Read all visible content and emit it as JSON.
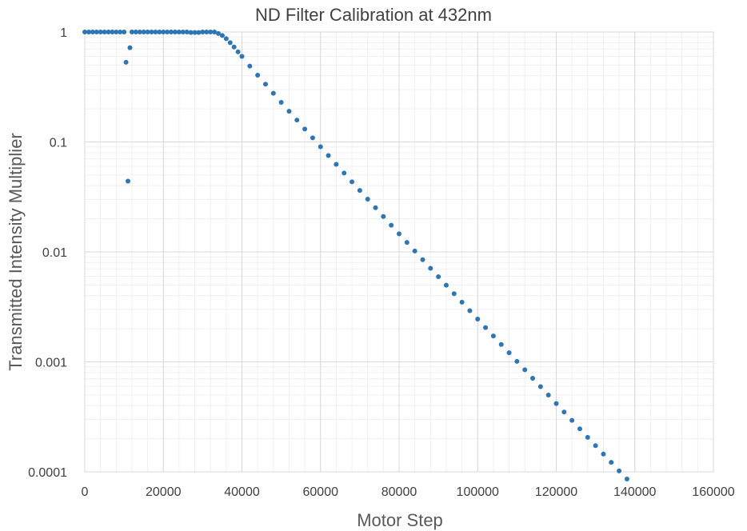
{
  "chart_data": {
    "type": "scatter",
    "title": "ND Filter Calibration at 432nm",
    "xlabel": "Motor Step",
    "ylabel": "Transmitted Intensity Multiplier",
    "xlim": [
      0,
      160000
    ],
    "ylim": [
      0.0001,
      1
    ],
    "y_scale": "log",
    "x_ticks": [
      0,
      20000,
      40000,
      60000,
      80000,
      100000,
      120000,
      140000,
      160000
    ],
    "x_tick_labels": [
      "0",
      "20000",
      "40000",
      "60000",
      "80000",
      "100000",
      "120000",
      "140000",
      "160000"
    ],
    "y_ticks": [
      1,
      0.1,
      0.01,
      0.001,
      0.0001
    ],
    "y_tick_labels": [
      "1",
      "0.1",
      "0.01",
      "0.001",
      "0.0001"
    ],
    "grid": "major and minor",
    "marker_color": "#2e75b6",
    "series": [
      {
        "points": [
          [
            0,
            1
          ],
          [
            1000,
            1
          ],
          [
            2000,
            1
          ],
          [
            3000,
            1
          ],
          [
            4000,
            1
          ],
          [
            5000,
            1
          ],
          [
            6000,
            1
          ],
          [
            7000,
            1
          ],
          [
            8000,
            1
          ],
          [
            9000,
            1
          ],
          [
            10000,
            1
          ],
          [
            10500,
            0.53
          ],
          [
            11000,
            0.044
          ],
          [
            11500,
            0.72
          ],
          [
            12000,
            1
          ],
          [
            13000,
            1
          ],
          [
            14000,
            1
          ],
          [
            15000,
            1
          ],
          [
            16000,
            1
          ],
          [
            17000,
            1
          ],
          [
            18000,
            1
          ],
          [
            19000,
            1
          ],
          [
            20000,
            1
          ],
          [
            21000,
            1
          ],
          [
            22000,
            1
          ],
          [
            23000,
            1
          ],
          [
            24000,
            1
          ],
          [
            25000,
            1
          ],
          [
            26000,
            1
          ],
          [
            27000,
            0.99
          ],
          [
            28000,
            0.99
          ],
          [
            29000,
            0.99
          ],
          [
            30000,
            1
          ],
          [
            31000,
            1
          ],
          [
            32000,
            1
          ],
          [
            33000,
            1
          ],
          [
            34000,
            0.97
          ],
          [
            35000,
            0.93
          ],
          [
            36000,
            0.87
          ],
          [
            37000,
            0.8
          ],
          [
            38000,
            0.73
          ],
          [
            39000,
            0.66
          ],
          [
            40000,
            0.6
          ],
          [
            42000,
            0.49
          ],
          [
            44000,
            0.405
          ],
          [
            46000,
            0.335
          ],
          [
            48000,
            0.277
          ],
          [
            50000,
            0.229
          ],
          [
            52000,
            0.19
          ],
          [
            54000,
            0.158
          ],
          [
            56000,
            0.131
          ],
          [
            58000,
            0.109
          ],
          [
            60000,
            0.0905
          ],
          [
            62000,
            0.0752
          ],
          [
            64000,
            0.0626
          ],
          [
            66000,
            0.0521
          ],
          [
            68000,
            0.0434
          ],
          [
            70000,
            0.0362
          ],
          [
            72000,
            0.0302
          ],
          [
            74000,
            0.0252
          ],
          [
            76000,
            0.021
          ],
          [
            78000,
            0.0175
          ],
          [
            80000,
            0.0146
          ],
          [
            82000,
            0.0122
          ],
          [
            84000,
            0.0102
          ],
          [
            86000,
            0.0085
          ],
          [
            88000,
            0.0071
          ],
          [
            90000,
            0.00595
          ],
          [
            92000,
            0.00498
          ],
          [
            94000,
            0.00417
          ],
          [
            96000,
            0.00349
          ],
          [
            98000,
            0.00292
          ],
          [
            100000,
            0.00245
          ],
          [
            102000,
            0.00205
          ],
          [
            104000,
            0.00172
          ],
          [
            106000,
            0.00144
          ],
          [
            108000,
            0.00121
          ],
          [
            110000,
            0.00101
          ],
          [
            112000,
            0.000847
          ],
          [
            114000,
            0.00071
          ],
          [
            116000,
            0.000595
          ],
          [
            118000,
            0.000499
          ],
          [
            120000,
            0.000418
          ],
          [
            122000,
            0.00035
          ],
          [
            124000,
            0.000294
          ],
          [
            126000,
            0.000246
          ],
          [
            128000,
            0.000206
          ],
          [
            130000,
            0.000173
          ],
          [
            132000,
            0.000145
          ],
          [
            134000,
            0.000122
          ],
          [
            136000,
            0.000102
          ],
          [
            138000,
            8.6e-05
          ]
        ]
      }
    ]
  }
}
